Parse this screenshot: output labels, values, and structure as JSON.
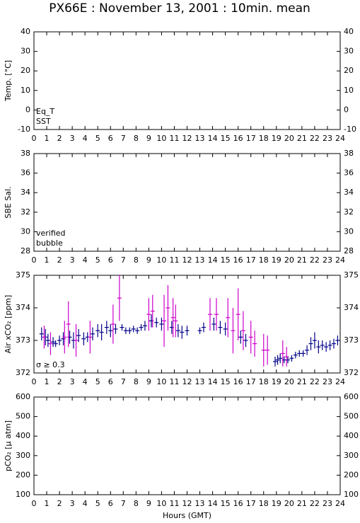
{
  "title": "PX66E : November 13, 2001 : 10min. mean",
  "chart_data": [
    {
      "type": "line",
      "ylabel": "Temp. [°C]",
      "xlim": [
        0,
        24
      ],
      "xticks": [
        0,
        1,
        2,
        3,
        4,
        5,
        6,
        7,
        8,
        9,
        10,
        11,
        12,
        13,
        14,
        15,
        16,
        17,
        18,
        19,
        20,
        21,
        22,
        23,
        24
      ],
      "ylim": [
        -10,
        40
      ],
      "yticks": [
        -10,
        0,
        10,
        20,
        30,
        40
      ],
      "series": [
        {
          "name": "Eq_T",
          "color": "#cc0000",
          "x": [],
          "values": []
        },
        {
          "name": "SST",
          "color": "#0000cc",
          "x": [],
          "values": []
        }
      ]
    },
    {
      "type": "line",
      "ylabel": "SBE Sal.",
      "xlim": [
        0,
        24
      ],
      "xticks": [
        0,
        1,
        2,
        3,
        4,
        5,
        6,
        7,
        8,
        9,
        10,
        11,
        12,
        13,
        14,
        15,
        16,
        17,
        18,
        19,
        20,
        21,
        22,
        23,
        24
      ],
      "ylim": [
        28,
        38
      ],
      "yticks": [
        28,
        30,
        32,
        34,
        36,
        38
      ],
      "series": [
        {
          "name": "verified",
          "color": "#0000cc",
          "x": [],
          "values": []
        },
        {
          "name": "bubble",
          "color": "#cc00cc",
          "x": [],
          "values": []
        }
      ]
    },
    {
      "type": "scatter",
      "ylabel": "Air xCO₂ [ppm]",
      "xlim": [
        0,
        24
      ],
      "xticks": [
        0,
        1,
        2,
        3,
        4,
        5,
        6,
        7,
        8,
        9,
        10,
        11,
        12,
        13,
        14,
        15,
        16,
        17,
        18,
        19,
        20,
        21,
        22,
        23,
        24
      ],
      "ylim": [
        372,
        375
      ],
      "yticks": [
        372,
        373,
        374,
        375
      ],
      "series": [
        {
          "color": "#000088",
          "x": [
            0.6,
            0.9,
            1.1,
            1.5,
            1.7,
            2.0,
            2.3,
            2.8,
            3.1,
            3.5,
            3.9,
            4.2,
            4.6,
            5.0,
            5.3,
            5.7,
            6.0,
            6.4,
            6.9,
            7.2,
            7.5,
            7.8,
            8.1,
            8.4,
            8.7,
            9.2,
            9.6,
            10.0,
            10.8,
            11.3,
            11.6,
            12.0,
            13.0,
            13.3,
            14.1,
            14.6,
            15.0,
            16.2,
            16.6,
            18.9,
            19.1,
            19.3,
            19.6,
            19.9,
            20.2,
            20.5,
            20.8,
            21.1,
            21.4,
            21.7,
            22.0,
            22.3,
            22.6,
            22.9,
            23.2,
            23.5,
            23.8
          ],
          "values": [
            373.2,
            373.1,
            373.0,
            372.95,
            372.9,
            373.0,
            373.05,
            373.1,
            373.0,
            373.15,
            373.05,
            373.1,
            373.2,
            373.3,
            373.25,
            373.4,
            373.3,
            373.35,
            373.4,
            373.3,
            373.3,
            373.35,
            373.3,
            373.4,
            373.45,
            373.6,
            373.55,
            373.5,
            373.4,
            373.3,
            373.25,
            373.3,
            373.3,
            373.4,
            373.5,
            373.4,
            373.35,
            373.1,
            373.0,
            372.35,
            372.4,
            372.45,
            372.4,
            372.4,
            372.45,
            372.55,
            372.6,
            372.6,
            372.7,
            372.9,
            373.0,
            372.8,
            372.85,
            372.8,
            372.85,
            372.9,
            373.0
          ],
          "errors": [
            0.2,
            0.25,
            0.2,
            0.15,
            0.1,
            0.15,
            0.2,
            0.2,
            0.25,
            0.2,
            0.2,
            0.15,
            0.2,
            0.2,
            0.25,
            0.2,
            0.2,
            0.15,
            0.1,
            0.1,
            0.1,
            0.1,
            0.1,
            0.1,
            0.15,
            0.2,
            0.15,
            0.2,
            0.2,
            0.2,
            0.2,
            0.15,
            0.1,
            0.15,
            0.2,
            0.2,
            0.2,
            0.2,
            0.2,
            0.15,
            0.15,
            0.15,
            0.1,
            0.1,
            0.1,
            0.1,
            0.1,
            0.1,
            0.15,
            0.2,
            0.25,
            0.2,
            0.15,
            0.15,
            0.15,
            0.15,
            0.15
          ]
        },
        {
          "name": "σ ≥ 0.3",
          "color": "#cc00cc",
          "x": [
            0.8,
            1.3,
            2.4,
            2.7,
            3.3,
            4.4,
            6.2,
            6.7,
            9.0,
            9.3,
            10.2,
            10.5,
            10.9,
            11.1,
            13.8,
            14.3,
            15.2,
            15.6,
            16.0,
            16.4,
            17.0,
            17.3,
            18.0,
            18.3,
            19.5,
            19.8
          ],
          "values": [
            373.1,
            372.9,
            373.1,
            373.5,
            373.0,
            373.1,
            373.5,
            374.3,
            373.8,
            373.9,
            373.6,
            374.0,
            373.7,
            373.6,
            373.8,
            373.8,
            373.7,
            373.3,
            373.8,
            373.3,
            373.1,
            372.9,
            372.7,
            372.7,
            372.6,
            372.5
          ],
          "errors": [
            0.35,
            0.35,
            0.5,
            0.7,
            0.5,
            0.5,
            0.6,
            0.7,
            0.5,
            0.5,
            0.8,
            0.7,
            0.6,
            0.5,
            0.5,
            0.5,
            0.6,
            0.7,
            0.8,
            0.6,
            0.5,
            0.4,
            0.5,
            0.45,
            0.4,
            0.3
          ]
        }
      ]
    },
    {
      "type": "line",
      "ylabel": "pCO₂ [μ atm]",
      "xlabel": "Hours (GMT)",
      "xlim": [
        0,
        24
      ],
      "xticks": [
        0,
        1,
        2,
        3,
        4,
        5,
        6,
        7,
        8,
        9,
        10,
        11,
        12,
        13,
        14,
        15,
        16,
        17,
        18,
        19,
        20,
        21,
        22,
        23,
        24
      ],
      "ylim": [
        100,
        600
      ],
      "yticks": [
        100,
        200,
        300,
        400,
        500,
        600
      ],
      "series": []
    }
  ]
}
